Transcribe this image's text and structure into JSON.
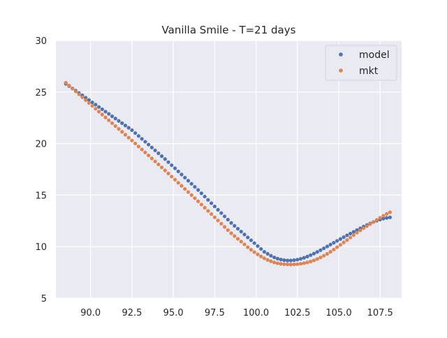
{
  "chart_data": {
    "type": "scatter",
    "title": "Vanilla Smile - T=21 days",
    "xlabel": "",
    "ylabel": "",
    "xlim": [
      87.9,
      108.8
    ],
    "ylim": [
      5,
      30
    ],
    "xticks": [
      90.0,
      92.5,
      95.0,
      97.5,
      100.0,
      102.5,
      105.0,
      107.5
    ],
    "xtick_labels": [
      "90.0",
      "92.5",
      "95.0",
      "97.5",
      "100.0",
      "102.5",
      "105.0",
      "107.5"
    ],
    "yticks": [
      5,
      10,
      15,
      20,
      25,
      30
    ],
    "ytick_labels": [
      "5",
      "10",
      "15",
      "20",
      "25",
      "30"
    ],
    "grid": true,
    "legend_position": "top-right",
    "x": [
      88.5,
      88.7,
      88.9,
      89.1,
      89.3,
      89.5,
      89.7,
      89.9,
      90.1,
      90.3,
      90.5,
      90.7,
      90.9,
      91.1,
      91.3,
      91.5,
      91.7,
      91.9,
      92.1,
      92.3,
      92.5,
      92.7,
      92.9,
      93.1,
      93.3,
      93.5,
      93.7,
      93.9,
      94.1,
      94.3,
      94.5,
      94.7,
      94.9,
      95.1,
      95.3,
      95.5,
      95.7,
      95.9,
      96.1,
      96.3,
      96.5,
      96.7,
      96.9,
      97.1,
      97.3,
      97.5,
      97.7,
      97.9,
      98.1,
      98.3,
      98.5,
      98.7,
      98.9,
      99.1,
      99.3,
      99.5,
      99.7,
      99.9,
      100.1,
      100.3,
      100.5,
      100.7,
      100.9,
      101.1,
      101.3,
      101.5,
      101.7,
      101.9,
      102.1,
      102.3,
      102.5,
      102.7,
      102.9,
      103.1,
      103.3,
      103.5,
      103.7,
      103.9,
      104.1,
      104.3,
      104.5,
      104.7,
      104.9,
      105.1,
      105.3,
      105.5,
      105.7,
      105.9,
      106.1,
      106.3,
      106.5,
      106.7,
      106.9,
      107.1,
      107.3,
      107.5,
      107.7,
      107.9,
      108.1
    ],
    "series": [
      {
        "name": "model",
        "color": "#4c72b0",
        "values": [
          25.8,
          25.58,
          25.35,
          25.13,
          24.9,
          24.68,
          24.45,
          24.23,
          24.0,
          23.78,
          23.55,
          23.33,
          23.1,
          22.88,
          22.65,
          22.43,
          22.2,
          21.98,
          21.75,
          21.53,
          21.3,
          21.02,
          20.74,
          20.46,
          20.18,
          19.9,
          19.62,
          19.34,
          19.06,
          18.78,
          18.5,
          18.2,
          17.9,
          17.6,
          17.3,
          17.0,
          16.7,
          16.4,
          16.1,
          15.8,
          15.5,
          15.18,
          14.86,
          14.54,
          14.22,
          13.9,
          13.58,
          13.26,
          12.94,
          12.62,
          12.3,
          12.02,
          11.74,
          11.46,
          11.18,
          10.9,
          10.62,
          10.34,
          10.06,
          9.78,
          9.5,
          9.31,
          9.12,
          8.96,
          8.84,
          8.75,
          8.69,
          8.66,
          8.66,
          8.69,
          8.74,
          8.82,
          8.92,
          9.04,
          9.18,
          9.33,
          9.49,
          9.66,
          9.84,
          10.02,
          10.2,
          10.38,
          10.56,
          10.74,
          10.92,
          11.1,
          11.27,
          11.44,
          11.61,
          11.78,
          11.95,
          12.1,
          12.25,
          12.39,
          12.52,
          12.63,
          12.72,
          12.79,
          12.84
        ]
      },
      {
        "name": "mkt",
        "color": "#dd8452",
        "values": [
          25.9,
          25.62,
          25.34,
          25.06,
          24.78,
          24.5,
          24.22,
          23.94,
          23.66,
          23.38,
          23.1,
          22.82,
          22.54,
          22.26,
          21.98,
          21.7,
          21.42,
          21.14,
          20.86,
          20.58,
          20.3,
          20.01,
          19.72,
          19.43,
          19.14,
          18.85,
          18.56,
          18.27,
          17.98,
          17.69,
          17.4,
          17.1,
          16.8,
          16.5,
          16.2,
          15.9,
          15.6,
          15.3,
          15.0,
          14.7,
          14.4,
          14.09,
          13.78,
          13.47,
          13.16,
          12.85,
          12.54,
          12.23,
          11.92,
          11.61,
          11.3,
          11.03,
          10.76,
          10.49,
          10.22,
          9.95,
          9.7,
          9.47,
          9.25,
          9.05,
          8.87,
          8.71,
          8.58,
          8.47,
          8.39,
          8.33,
          8.3,
          8.28,
          8.27,
          8.28,
          8.3,
          8.34,
          8.4,
          8.47,
          8.56,
          8.67,
          8.8,
          8.95,
          9.12,
          9.3,
          9.5,
          9.72,
          9.95,
          10.18,
          10.41,
          10.64,
          10.88,
          11.12,
          11.36,
          11.58,
          11.8,
          12.0,
          12.2,
          12.4,
          12.6,
          12.8,
          13.0,
          13.18,
          13.34
        ]
      }
    ]
  }
}
